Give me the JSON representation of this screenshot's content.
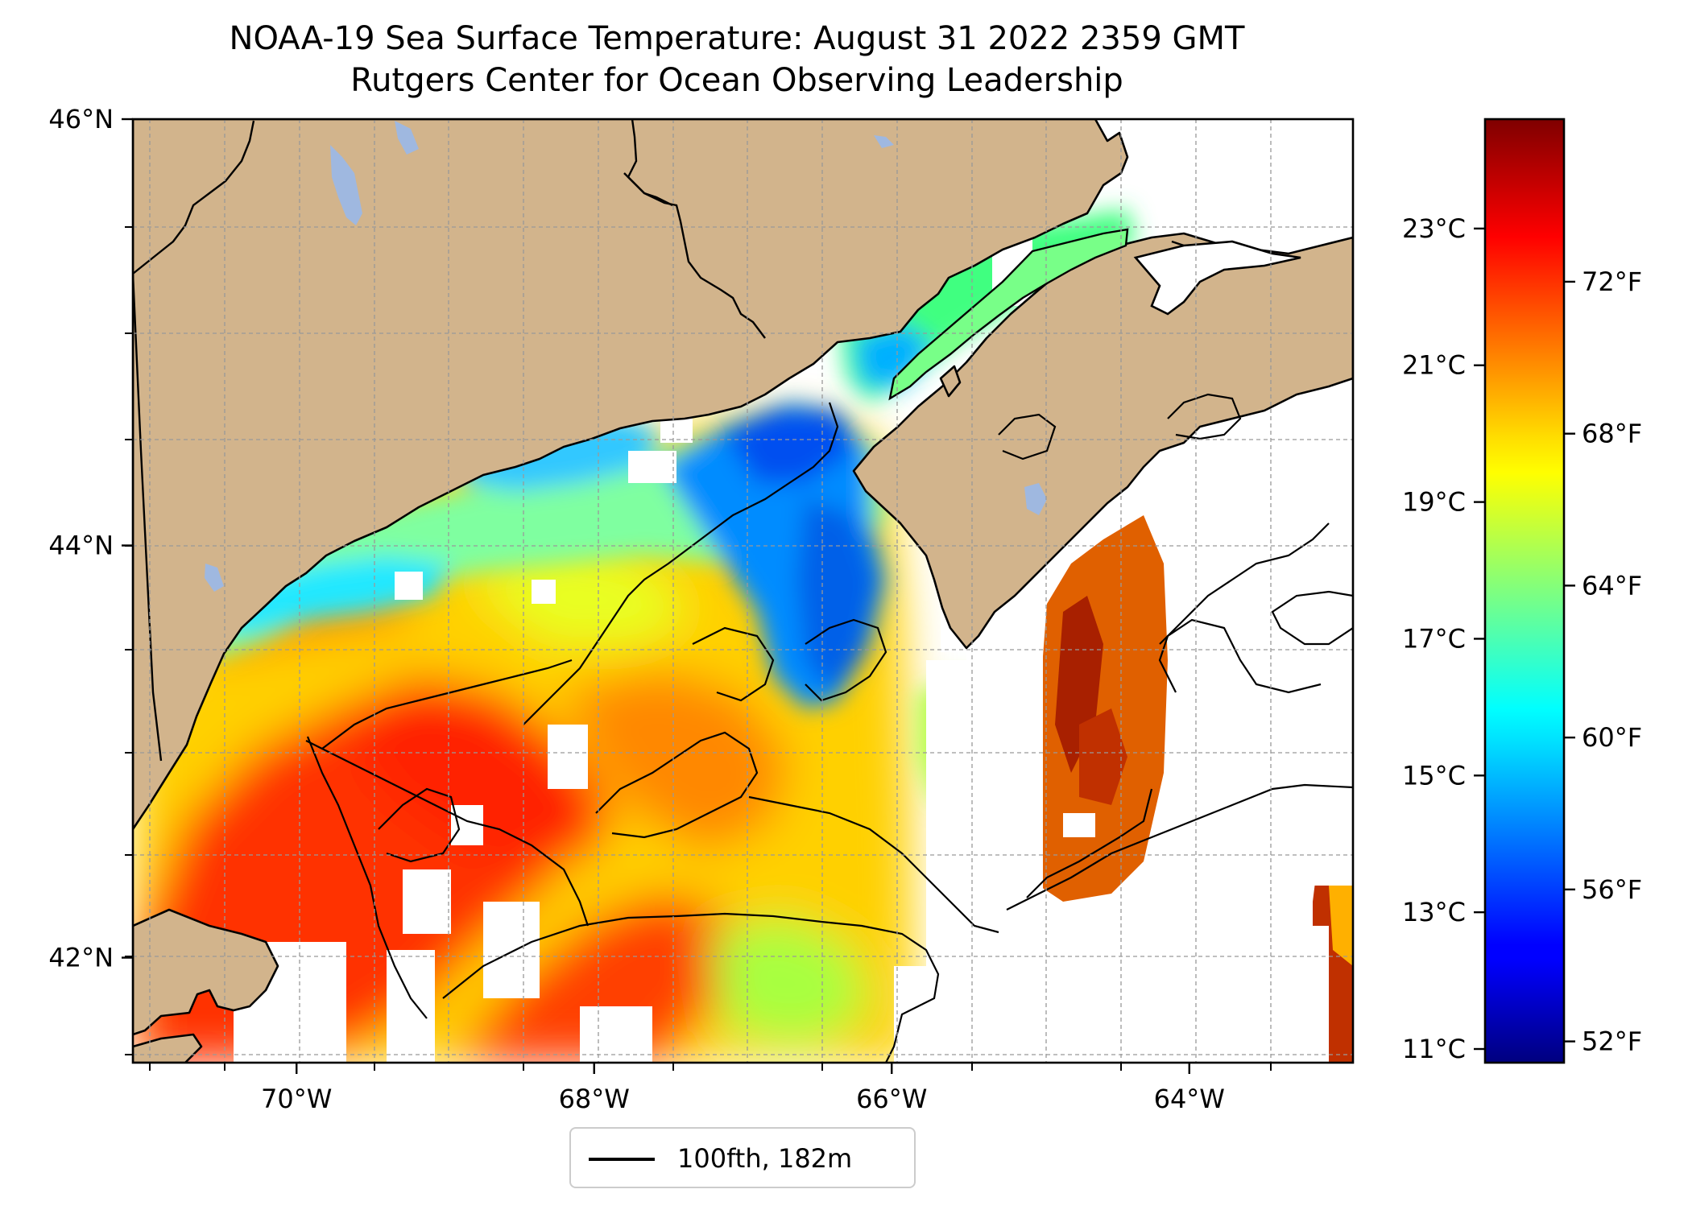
{
  "title": {
    "line1": "NOAA-19 Sea Surface Temperature: August 31 2022 2359 GMT",
    "line2": "Rutgers Center for Ocean Observing Leadership"
  },
  "map": {
    "lon_range": [
      -71.1,
      -62.9
    ],
    "lat_range": [
      41.48,
      46.0
    ],
    "lon_ticks": [
      {
        "value": -70,
        "label": "70°W"
      },
      {
        "value": -68,
        "label": "68°W"
      },
      {
        "value": -66,
        "label": "66°W"
      },
      {
        "value": -64,
        "label": "64°W"
      }
    ],
    "lat_ticks": [
      {
        "value": 46,
        "label": "46°N"
      },
      {
        "value": 44,
        "label": "44°N"
      },
      {
        "value": 42,
        "label": "42°N"
      }
    ],
    "gridlines": true,
    "colors": {
      "land": "#d2b48c",
      "lake": "#9fb8e0",
      "coast": "#000000",
      "nodata": "#ffffff"
    }
  },
  "colorbar": {
    "colormap": "jet",
    "range_c": [
      10.8,
      24.6
    ],
    "celsius_ticks": [
      "11°C",
      "13°C",
      "15°C",
      "17°C",
      "19°C",
      "21°C",
      "23°C"
    ],
    "fahrenheit_ticks": [
      "52°F",
      "56°F",
      "60°F",
      "64°F",
      "68°F",
      "72°F"
    ]
  },
  "legend": {
    "label": "100fth, 182m",
    "color": "#000000"
  }
}
